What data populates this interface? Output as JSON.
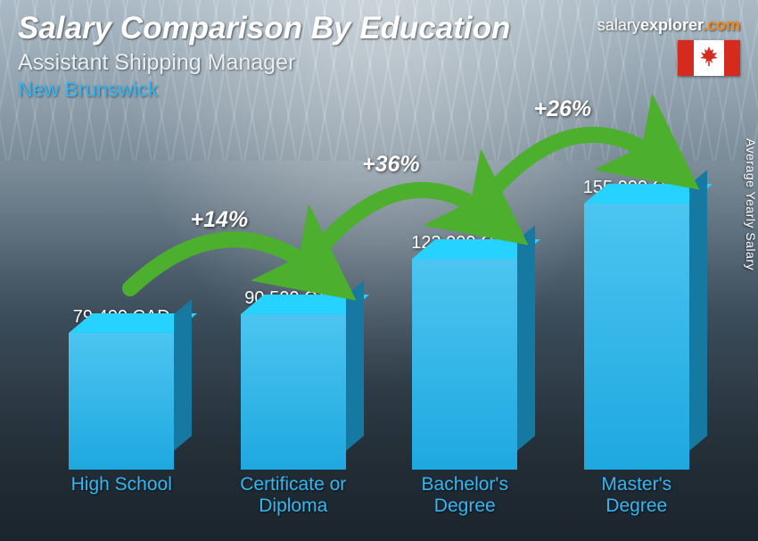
{
  "header": {
    "title": "Salary Comparison By Education",
    "subtitle": "Assistant Shipping Manager",
    "location": "New Brunswick"
  },
  "branding": {
    "textThin": "salary",
    "textBold": "explorer",
    "domain": ".com",
    "flag": "canada"
  },
  "sideLabel": "Average Yearly Salary",
  "chart": {
    "type": "bar",
    "barColor": "#1ea8e0",
    "barColorLight": "#4cc5f0",
    "barColorDark": "#0d7ba8",
    "maxValue": 155000,
    "maxBarHeight": 298,
    "currency": "CAD",
    "bars": [
      {
        "label": "High School",
        "value": 79400,
        "display": "79,400 CAD"
      },
      {
        "label": "Certificate or Diploma",
        "value": 90500,
        "display": "90,500 CAD"
      },
      {
        "label": "Bachelor's Degree",
        "value": 123000,
        "display": "123,000 CAD"
      },
      {
        "label": "Master's Degree",
        "value": 155000,
        "display": "155,000 CAD"
      }
    ],
    "increases": [
      {
        "from": 0,
        "to": 1,
        "label": "+14%"
      },
      {
        "from": 1,
        "to": 2,
        "label": "+36%"
      },
      {
        "from": 2,
        "to": 3,
        "label": "+26%"
      }
    ],
    "arcColor": "#4caf2e",
    "arcLabelFontSize": 25,
    "labelColor": "#35b6f2",
    "valueColor": "#ffffff"
  }
}
